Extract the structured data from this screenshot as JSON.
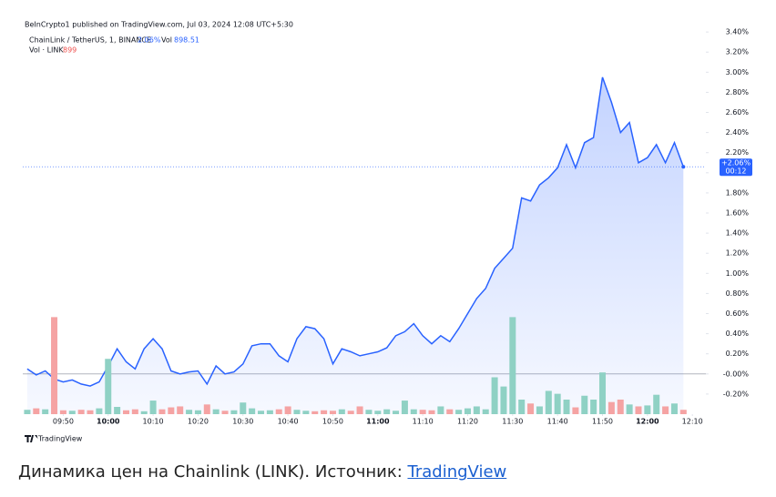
{
  "header": {
    "published": "BeInCrypto1 published on TradingView.com, Jul 03, 2024 12:08 UTC+5:30"
  },
  "chart_data": {
    "type": "line",
    "legend": {
      "change": "2.06%",
      "vol_key": "Vol",
      "vol": "898.51",
      "vol_value": "899"
    },
    "x": [
      "09:42",
      "09:44",
      "09:46",
      "09:48",
      "09:50",
      "09:52",
      "09:54",
      "09:56",
      "09:58",
      "10:00",
      "10:02",
      "10:04",
      "10:06",
      "10:08",
      "10:10",
      "10:12",
      "10:14",
      "10:16",
      "10:18",
      "10:20",
      "10:22",
      "10:24",
      "10:26",
      "10:28",
      "10:30",
      "10:32",
      "10:34",
      "10:36",
      "10:38",
      "10:40",
      "10:42",
      "10:44",
      "10:46",
      "10:48",
      "10:50",
      "10:52",
      "10:54",
      "10:56",
      "10:58",
      "11:00",
      "11:02",
      "11:04",
      "11:06",
      "11:08",
      "11:10",
      "11:12",
      "11:14",
      "11:16",
      "11:18",
      "11:20",
      "11:22",
      "11:24",
      "11:26",
      "11:28",
      "11:30",
      "11:32",
      "11:34",
      "11:36",
      "11:38",
      "11:40",
      "11:42",
      "11:44",
      "11:46",
      "11:48",
      "11:50",
      "11:52",
      "11:54",
      "11:56",
      "11:58",
      "12:00",
      "12:02",
      "12:04",
      "12:06",
      "12:08"
    ],
    "xlim": [
      "09:41",
      "12:13"
    ],
    "xticks": [
      "09:50",
      "10:00",
      "10:10",
      "10:20",
      "10:30",
      "10:40",
      "10:50",
      "11:00",
      "11:10",
      "11:20",
      "11:30",
      "11:40",
      "11:50",
      "12:00",
      "12:10"
    ],
    "ylim": [
      -0.4,
      3.46
    ],
    "yticks": [
      {
        "value": -0.2,
        "label": "-0.20%"
      },
      {
        "value": 0,
        "label": "-0.00%"
      },
      {
        "value": 0.2,
        "label": "0.20%"
      },
      {
        "value": 0.4,
        "label": "0.40%"
      },
      {
        "value": 0.6,
        "label": "0.60%"
      },
      {
        "value": 0.8,
        "label": "0.80%"
      },
      {
        "value": 1.0,
        "label": "1.00%"
      },
      {
        "value": 1.2,
        "label": "1.20%"
      },
      {
        "value": 1.4,
        "label": "1.40%"
      },
      {
        "value": 1.6,
        "label": "1.60%"
      },
      {
        "value": 1.8,
        "label": "1.80%"
      },
      {
        "value": 2.0,
        "label": "2.00%"
      },
      {
        "value": 2.2,
        "label": "2.20%"
      },
      {
        "value": 2.4,
        "label": "2.40%"
      },
      {
        "value": 2.6,
        "label": "2.60%"
      },
      {
        "value": 2.8,
        "label": "2.80%"
      },
      {
        "value": 3.0,
        "label": "3.00%"
      },
      {
        "value": 3.2,
        "label": "3.20%"
      },
      {
        "value": 3.4,
        "label": "3.40%"
      }
    ],
    "y2lim": [
      0,
      80000
    ],
    "price_label": "+2.06%",
    "countdown": "00:12",
    "series": [
      {
        "name": "ChainLink / TetherUS, 1, BINANCE",
        "color": "#2962ff",
        "values": [
          0.05,
          -0.01,
          0.03,
          -0.05,
          -0.08,
          -0.06,
          -0.1,
          -0.12,
          -0.08,
          0.08,
          0.25,
          0.12,
          0.05,
          0.25,
          0.35,
          0.25,
          0.03,
          0.0,
          0.02,
          0.03,
          -0.1,
          0.08,
          0.0,
          0.02,
          0.1,
          0.28,
          0.3,
          0.3,
          0.18,
          0.12,
          0.35,
          0.47,
          0.45,
          0.35,
          0.1,
          0.25,
          0.22,
          0.18,
          0.2,
          0.22,
          0.26,
          0.38,
          0.42,
          0.5,
          0.38,
          0.3,
          0.38,
          0.32,
          0.45,
          0.6,
          0.75,
          0.85,
          1.05,
          1.15,
          1.25,
          1.75,
          1.72,
          1.88,
          1.95,
          2.05,
          2.28,
          2.05,
          2.3,
          2.35,
          2.95,
          2.7,
          2.4,
          2.5,
          2.1,
          2.15,
          2.28,
          2.1,
          2.3,
          2.06
        ]
      },
      {
        "name": "Vol · LINK",
        "axis": "y2",
        "type": "bar",
        "colors": {
          "up": "#8fd1c4",
          "down": "#f5a3a3"
        },
        "values": [
          900,
          1200,
          1000,
          20000,
          800,
          700,
          900,
          800,
          1200,
          11400,
          1500,
          800,
          1000,
          600,
          2800,
          1000,
          1400,
          1600,
          900,
          800,
          2000,
          1000,
          700,
          800,
          2400,
          1200,
          700,
          800,
          1000,
          1600,
          900,
          700,
          600,
          800,
          700,
          1000,
          700,
          1600,
          900,
          700,
          1000,
          700,
          2800,
          1000,
          900,
          800,
          1600,
          1000,
          900,
          1200,
          1600,
          1000,
          7600,
          5700,
          20000,
          3000,
          2200,
          1600,
          4800,
          4200,
          3000,
          1400,
          3800,
          3000,
          8600,
          2500,
          3000,
          2000,
          1600,
          1800,
          4000,
          1600,
          2200,
          899
        ]
      }
    ]
  },
  "footer": {
    "logo": "TradingView",
    "caption": "Динамика цен на Chainlink (LINK). Источник: ",
    "link": "TradingView"
  }
}
